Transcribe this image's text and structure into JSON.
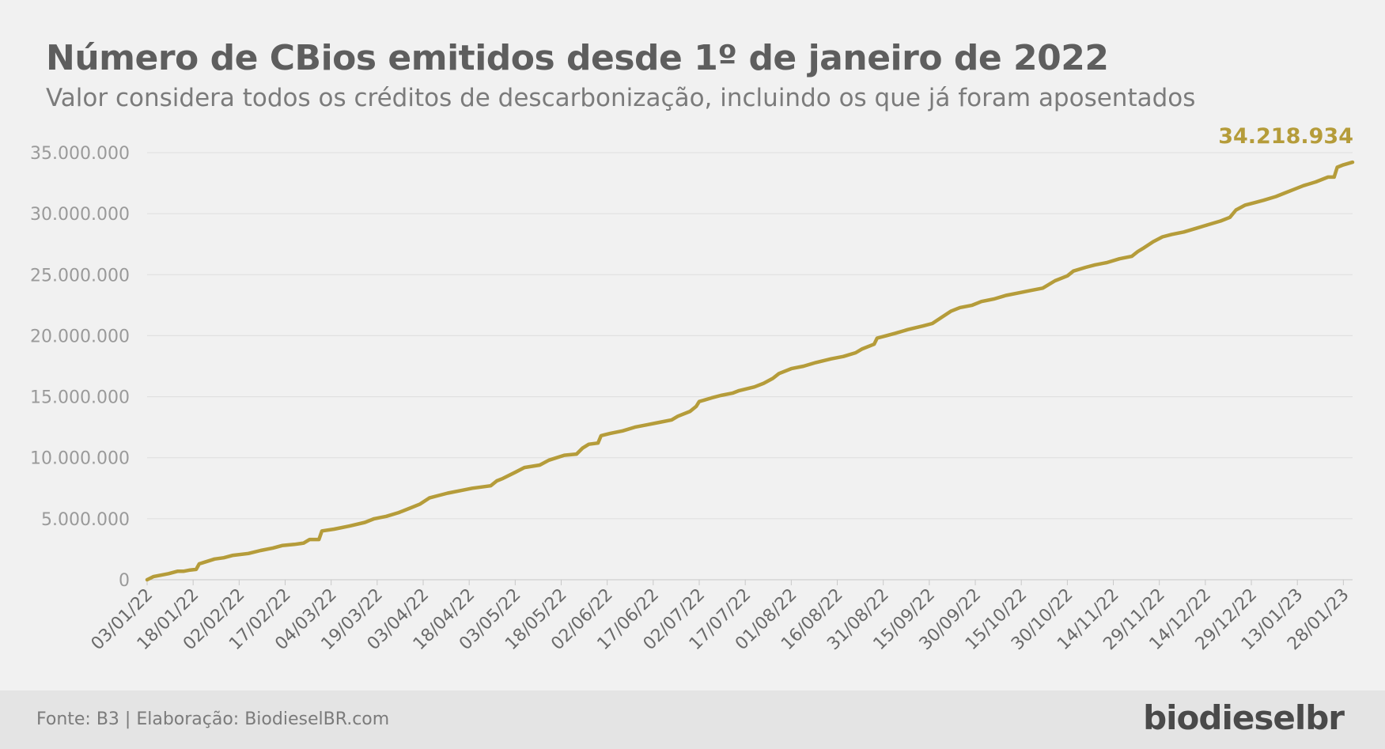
{
  "header": {
    "title": "Número de CBios emitidos desde 1º de janeiro de 2022",
    "subtitle": "Valor considera todos os créditos de descarbonização, incluindo os que já foram aposentados"
  },
  "footer": {
    "source": "Fonte: B3 | Elaboração: BiodieselBR.com",
    "brand": "biodieselbr"
  },
  "colors": {
    "series": "#b59c3a",
    "axis_text": "#9a9a9a",
    "grid": "#dedede"
  },
  "chart_data": {
    "type": "line",
    "title": "Número de CBios emitidos desde 1º de janeiro de 2022",
    "subtitle": "Valor considera todos os créditos de descarbonização, incluindo os que já foram aposentados",
    "xlabel": "",
    "ylabel": "",
    "ylim": [
      0,
      35000000
    ],
    "grid": true,
    "y_ticks": [
      {
        "value": 0,
        "label": "0"
      },
      {
        "value": 5000000,
        "label": "5.000.000"
      },
      {
        "value": 10000000,
        "label": "10.000.000"
      },
      {
        "value": 15000000,
        "label": "15.000.000"
      },
      {
        "value": 20000000,
        "label": "20.000.000"
      },
      {
        "value": 25000000,
        "label": "25.000.000"
      },
      {
        "value": 30000000,
        "label": "30.000.000"
      },
      {
        "value": 35000000,
        "label": "35.000.000"
      }
    ],
    "x_ticks": [
      "03/01/22",
      "18/01/22",
      "02/02/22",
      "17/02/22",
      "04/03/22",
      "19/03/22",
      "03/04/22",
      "18/04/22",
      "03/05/22",
      "18/05/22",
      "02/06/22",
      "17/06/22",
      "02/07/22",
      "17/07/22",
      "01/08/22",
      "16/08/22",
      "31/08/22",
      "15/09/22",
      "30/09/22",
      "15/10/22",
      "30/10/22",
      "14/11/22",
      "29/11/22",
      "14/12/22",
      "29/12/22",
      "13/01/23",
      "28/01/23"
    ],
    "x_end_date": "31/01/23",
    "series": [
      {
        "color": "#b59c3a",
        "end_label": "34.218.934",
        "points": [
          [
            "03/01/22",
            0
          ],
          [
            "05/01/22",
            250000
          ],
          [
            "10/01/22",
            500000
          ],
          [
            "13/01/22",
            700000
          ],
          [
            "15/01/22",
            700000
          ],
          [
            "17/01/22",
            800000
          ],
          [
            "19/01/22",
            850000
          ],
          [
            "20/01/22",
            1300000
          ],
          [
            "25/01/22",
            1700000
          ],
          [
            "28/01/22",
            1800000
          ],
          [
            "31/01/22",
            2000000
          ],
          [
            "05/02/22",
            2150000
          ],
          [
            "09/02/22",
            2400000
          ],
          [
            "13/02/22",
            2600000
          ],
          [
            "16/02/22",
            2800000
          ],
          [
            "20/02/22",
            2900000
          ],
          [
            "23/02/22",
            3000000
          ],
          [
            "25/02/22",
            3300000
          ],
          [
            "28/02/22",
            3300000
          ],
          [
            "01/03/22",
            4000000
          ],
          [
            "05/03/22",
            4150000
          ],
          [
            "10/03/22",
            4400000
          ],
          [
            "15/03/22",
            4700000
          ],
          [
            "18/03/22",
            5000000
          ],
          [
            "22/03/22",
            5200000
          ],
          [
            "26/03/22",
            5500000
          ],
          [
            "30/03/22",
            5900000
          ],
          [
            "02/04/22",
            6200000
          ],
          [
            "05/04/22",
            6700000
          ],
          [
            "08/04/22",
            6900000
          ],
          [
            "11/04/22",
            7100000
          ],
          [
            "15/04/22",
            7300000
          ],
          [
            "19/04/22",
            7500000
          ],
          [
            "25/04/22",
            7700000
          ],
          [
            "27/04/22",
            8100000
          ],
          [
            "29/04/22",
            8300000
          ],
          [
            "03/05/22",
            8800000
          ],
          [
            "06/05/22",
            9200000
          ],
          [
            "11/05/22",
            9400000
          ],
          [
            "14/05/22",
            9800000
          ],
          [
            "19/05/22",
            10200000
          ],
          [
            "23/05/22",
            10300000
          ],
          [
            "25/05/22",
            10800000
          ],
          [
            "27/05/22",
            11100000
          ],
          [
            "30/05/22",
            11200000
          ],
          [
            "31/05/22",
            11800000
          ],
          [
            "03/06/22",
            12000000
          ],
          [
            "07/06/22",
            12200000
          ],
          [
            "11/06/22",
            12500000
          ],
          [
            "15/06/22",
            12700000
          ],
          [
            "19/06/22",
            12900000
          ],
          [
            "23/06/22",
            13100000
          ],
          [
            "25/06/22",
            13400000
          ],
          [
            "29/06/22",
            13800000
          ],
          [
            "01/07/22",
            14200000
          ],
          [
            "02/07/22",
            14600000
          ],
          [
            "06/07/22",
            14900000
          ],
          [
            "09/07/22",
            15100000
          ],
          [
            "13/07/22",
            15300000
          ],
          [
            "15/07/22",
            15500000
          ],
          [
            "20/07/22",
            15800000
          ],
          [
            "23/07/22",
            16100000
          ],
          [
            "26/07/22",
            16500000
          ],
          [
            "28/07/22",
            16900000
          ],
          [
            "01/08/22",
            17300000
          ],
          [
            "05/08/22",
            17500000
          ],
          [
            "09/08/22",
            17800000
          ],
          [
            "14/08/22",
            18100000
          ],
          [
            "18/08/22",
            18300000
          ],
          [
            "22/08/22",
            18600000
          ],
          [
            "24/08/22",
            18900000
          ],
          [
            "28/08/22",
            19300000
          ],
          [
            "29/08/22",
            19800000
          ],
          [
            "01/09/22",
            20000000
          ],
          [
            "04/09/22",
            20200000
          ],
          [
            "08/09/22",
            20500000
          ],
          [
            "13/09/22",
            20800000
          ],
          [
            "16/09/22",
            21000000
          ],
          [
            "19/09/22",
            21500000
          ],
          [
            "22/09/22",
            22000000
          ],
          [
            "25/09/22",
            22300000
          ],
          [
            "29/09/22",
            22500000
          ],
          [
            "02/10/22",
            22800000
          ],
          [
            "06/10/22",
            23000000
          ],
          [
            "10/10/22",
            23300000
          ],
          [
            "14/10/22",
            23500000
          ],
          [
            "18/10/22",
            23700000
          ],
          [
            "22/10/22",
            23900000
          ],
          [
            "26/10/22",
            24500000
          ],
          [
            "30/10/22",
            24900000
          ],
          [
            "01/11/22",
            25300000
          ],
          [
            "05/11/22",
            25600000
          ],
          [
            "08/11/22",
            25800000
          ],
          [
            "12/11/22",
            26000000
          ],
          [
            "16/11/22",
            26300000
          ],
          [
            "20/11/22",
            26500000
          ],
          [
            "22/11/22",
            26900000
          ],
          [
            "24/11/22",
            27200000
          ],
          [
            "27/11/22",
            27700000
          ],
          [
            "30/11/22",
            28100000
          ],
          [
            "03/12/22",
            28300000
          ],
          [
            "07/12/22",
            28500000
          ],
          [
            "11/12/22",
            28800000
          ],
          [
            "15/12/22",
            29100000
          ],
          [
            "19/12/22",
            29400000
          ],
          [
            "22/12/22",
            29700000
          ],
          [
            "24/12/22",
            30300000
          ],
          [
            "27/12/22",
            30700000
          ],
          [
            "30/12/22",
            30900000
          ],
          [
            "02/01/23",
            31100000
          ],
          [
            "06/01/23",
            31400000
          ],
          [
            "09/01/23",
            31700000
          ],
          [
            "12/01/23",
            32000000
          ],
          [
            "15/01/23",
            32300000
          ],
          [
            "19/01/23",
            32600000
          ],
          [
            "23/01/23",
            33000000
          ],
          [
            "25/01/23",
            33000000
          ],
          [
            "26/01/23",
            33800000
          ],
          [
            "28/01/23",
            34000000
          ],
          [
            "31/01/23",
            34218934
          ]
        ]
      }
    ]
  }
}
